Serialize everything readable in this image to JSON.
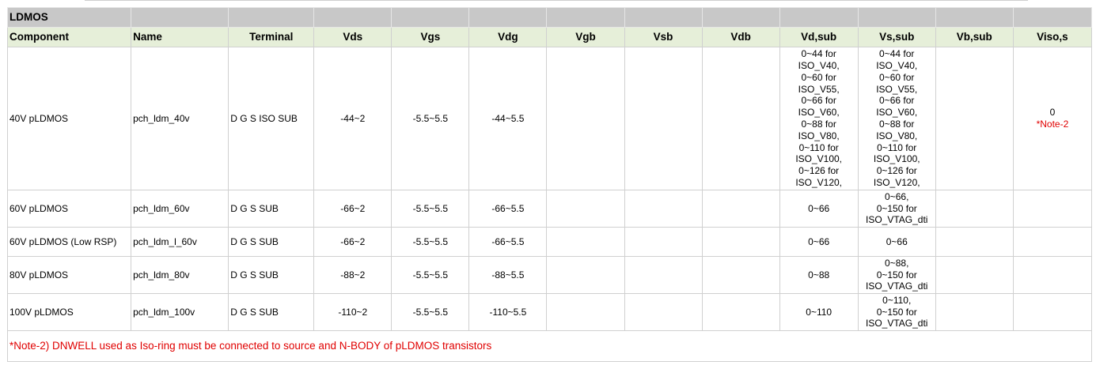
{
  "table": {
    "title": "LDMOS",
    "headers": [
      "Component",
      "Name",
      "Terminal",
      "Vds",
      "Vgs",
      "Vdg",
      "Vgb",
      "Vsb",
      "Vdb",
      "Vd,sub",
      "Vs,sub",
      "Vb,sub",
      "Viso,s"
    ],
    "rows": [
      {
        "component": "40V pLDMOS",
        "name": "pch_ldm_40v",
        "terminal": "D G S ISO SUB",
        "vds": "-44~2",
        "vgs": "-5.5~5.5",
        "vdg": "-44~5.5",
        "vgb": "",
        "vsb": "",
        "vdb": "",
        "vdsub": [
          "0~44 for",
          "ISO_V40,",
          "0~60 for",
          "ISO_V55,",
          "0~66 for",
          "ISO_V60,",
          "0~88 for",
          "ISO_V80,",
          "0~110 for",
          "ISO_V100,",
          "0~126 for",
          "ISO_V120,"
        ],
        "vssub": [
          "0~44 for",
          "ISO_V40,",
          "0~60 for",
          "ISO_V55,",
          "0~66 for",
          "ISO_V60,",
          "0~88 for",
          "ISO_V80,",
          "0~110 for",
          "ISO_V100,",
          "0~126 for",
          "ISO_V120,"
        ],
        "vbsub": "",
        "visos": "0",
        "visos_note": "*Note-2"
      },
      {
        "component": "60V pLDMOS",
        "name": "pch_ldm_60v",
        "terminal": "D G S SUB",
        "vds": "-66~2",
        "vgs": "-5.5~5.5",
        "vdg": "-66~5.5",
        "vgb": "",
        "vsb": "",
        "vdb": "",
        "vdsub": [
          "0~66"
        ],
        "vssub": [
          "0~66,",
          "0~150 for",
          "ISO_VTAG_dti"
        ],
        "vbsub": "",
        "visos": "",
        "visos_note": ""
      },
      {
        "component": "60V pLDMOS (Low RSP)",
        "name": "pch_ldm_l_60v",
        "terminal": "D G S SUB",
        "vds": "-66~2",
        "vgs": "-5.5~5.5",
        "vdg": "-66~5.5",
        "vgb": "",
        "vsb": "",
        "vdb": "",
        "vdsub": [
          "0~66"
        ],
        "vssub": [
          "0~66"
        ],
        "vbsub": "",
        "visos": "",
        "visos_note": ""
      },
      {
        "component": "80V pLDMOS",
        "name": "pch_ldm_80v",
        "terminal": "D G S SUB",
        "vds": "-88~2",
        "vgs": "-5.5~5.5",
        "vdg": "-88~5.5",
        "vgb": "",
        "vsb": "",
        "vdb": "",
        "vdsub": [
          "0~88"
        ],
        "vssub": [
          "0~88,",
          "0~150 for",
          "ISO_VTAG_dti"
        ],
        "vbsub": "",
        "visos": "",
        "visos_note": ""
      },
      {
        "component": "100V pLDMOS",
        "name": "pch_ldm_100v",
        "terminal": "D G S SUB",
        "vds": "-110~2",
        "vgs": "-5.5~5.5",
        "vdg": "-110~5.5",
        "vgb": "",
        "vsb": "",
        "vdb": "",
        "vdsub": [
          "0~110"
        ],
        "vssub": [
          "0~110,",
          "0~150 for",
          "ISO_VTAG_dti"
        ],
        "vbsub": "",
        "visos": "",
        "visos_note": ""
      }
    ],
    "note": "*Note-2) DNWELL used as Iso-ring must be connected to source and N-BODY of pLDMOS transistors"
  },
  "colors": {
    "title_bg": "#c8c8c8",
    "header_bg": "#e6efd9",
    "note_red": "#e00000"
  }
}
